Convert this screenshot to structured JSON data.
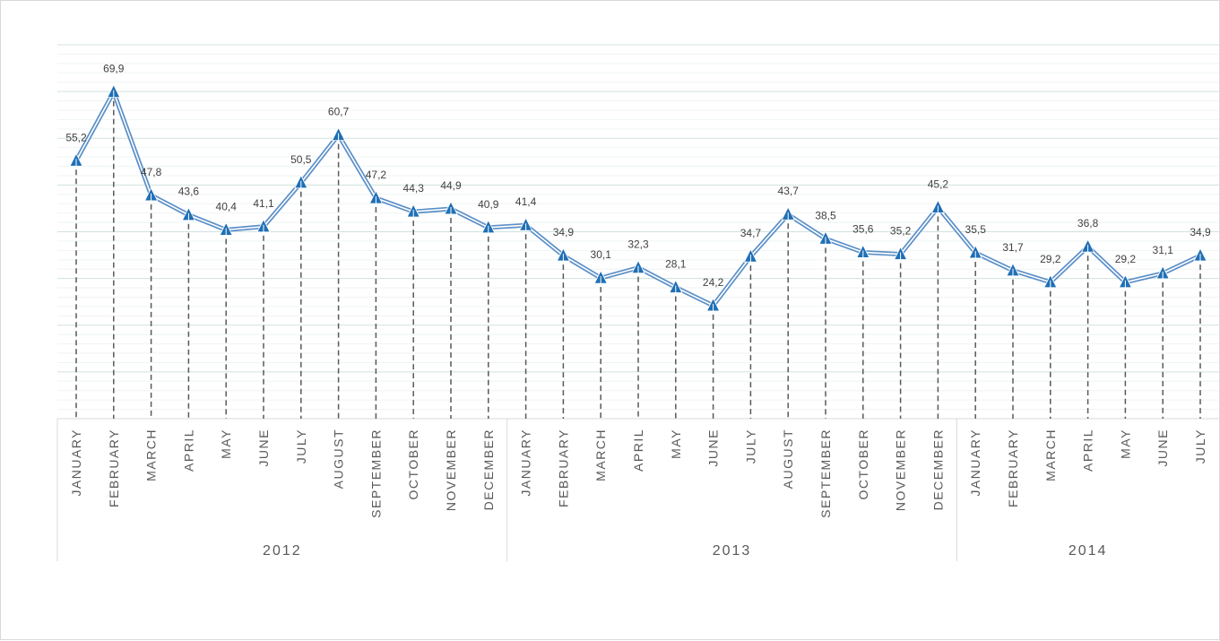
{
  "chart_data": {
    "type": "line",
    "title": "",
    "xlabel": "",
    "ylabel": "",
    "ylim": [
      0,
      80
    ],
    "grid": true,
    "legend": "none",
    "colors": {
      "line": "#5b8fc7",
      "line_inner": "#ffffff",
      "marker": "#1f6fb5",
      "drop_line": "#595959",
      "grid_major": "#cfe3df",
      "grid_minor": "#eef5f3"
    },
    "year_groups": [
      {
        "label": "2012",
        "count": 12
      },
      {
        "label": "2013",
        "count": 12
      },
      {
        "label": "2014",
        "count": 7
      }
    ],
    "categories": [
      "JANUARY",
      "FEBRUARY",
      "MARCH",
      "APRIL",
      "MAY",
      "JUNE",
      "JULY",
      "AUGUST",
      "SEPTEMBER",
      "OCTOBER",
      "NOVEMBER",
      "DECEMBER",
      "JANUARY",
      "FEBRUARY",
      "MARCH",
      "APRIL",
      "MAY",
      "JUNE",
      "JULY",
      "AUGUST",
      "SEPTEMBER",
      "OCTOBER",
      "NOVEMBER",
      "DECEMBER",
      "JANUARY",
      "FEBRUARY",
      "MARCH",
      "APRIL",
      "MAY",
      "JUNE",
      "JULY"
    ],
    "values": [
      55.2,
      69.9,
      47.8,
      43.6,
      40.4,
      41.1,
      50.5,
      60.7,
      47.2,
      44.3,
      44.9,
      40.9,
      41.4,
      34.9,
      30.1,
      32.3,
      28.1,
      24.2,
      34.7,
      43.7,
      38.5,
      35.6,
      35.2,
      45.2,
      35.5,
      31.7,
      29.2,
      36.8,
      29.2,
      31.1,
      34.9
    ],
    "data_labels": [
      "55,2",
      "69,9",
      "47,8",
      "43,6",
      "40,4",
      "41,1",
      "50,5",
      "60,7",
      "47,2",
      "44,3",
      "44,9",
      "40,9",
      "41,4",
      "34,9",
      "30,1",
      "32,3",
      "28,1",
      "24,2",
      "34,7",
      "43,7",
      "38,5",
      "35,6",
      "35,2",
      "45,2",
      "35,5",
      "31,7",
      "29,2",
      "36,8",
      "29,2",
      "31,1",
      "34,9"
    ]
  }
}
